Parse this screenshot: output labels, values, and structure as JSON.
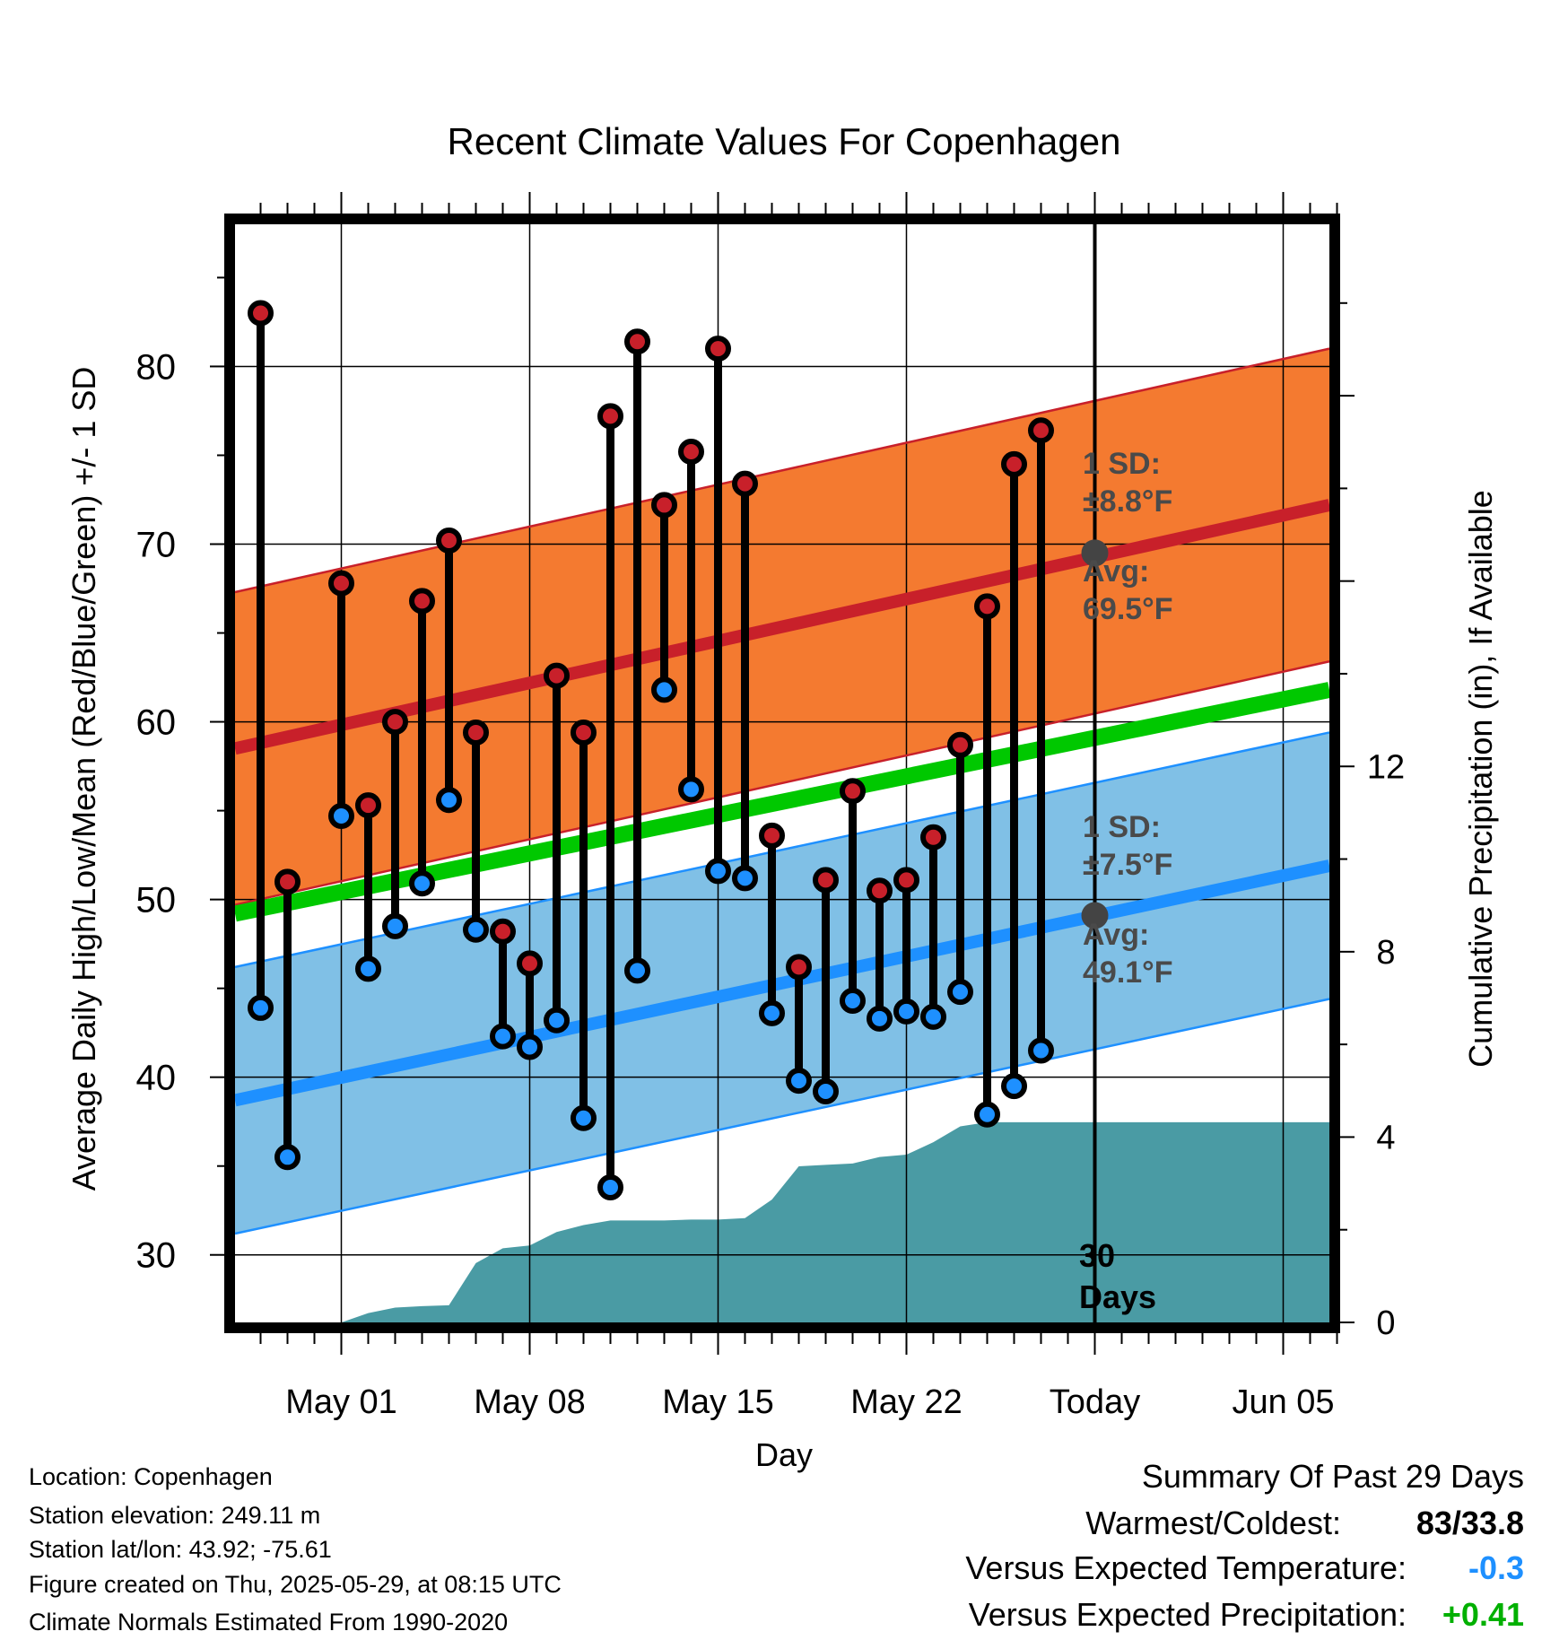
{
  "chart_data": {
    "type": "line",
    "title": "Recent Climate Values For Copenhagen",
    "xlabel": "Day",
    "ylabel": "Average Daily High/Low/Mean (Red/Blue/Green) +/- 1 SD",
    "ylabel_right": "Cumulative Precipitation (in), If Available",
    "x_ticks": [
      "May 01",
      "May 08",
      "May 15",
      "May 22",
      "Today",
      "Jun 05"
    ],
    "y_ticks": [
      30,
      40,
      50,
      60,
      70,
      80
    ],
    "y_ticks_right": [
      0,
      4,
      8,
      12
    ],
    "ylim": [
      26.2,
      88
    ],
    "ylim_right": [
      0,
      23.7
    ],
    "grid": true,
    "today_marker": "30 Days",
    "days": [
      "Apr 28",
      "Apr 29",
      "Apr 30",
      "May 01",
      "May 02",
      "May 03",
      "May 04",
      "May 05",
      "May 06",
      "May 07",
      "May 08",
      "May 09",
      "May 10",
      "May 11",
      "May 12",
      "May 13",
      "May 14",
      "May 15",
      "May 16",
      "May 17",
      "May 18",
      "May 19",
      "May 20",
      "May 21",
      "May 22",
      "May 23",
      "May 24",
      "May 25",
      "May 26",
      "May 27",
      "May 28",
      "May 29",
      "May 30",
      "May 31",
      "Jun 01",
      "Jun 02",
      "Jun 03",
      "Jun 04",
      "Jun 05",
      "Jun 06",
      "Jun 07"
    ],
    "series": [
      {
        "name": "Daily High",
        "color": "#c8202a",
        "values": [
          83.0,
          51.0,
          null,
          67.8,
          55.3,
          60.0,
          66.8,
          70.2,
          59.4,
          48.2,
          46.4,
          62.6,
          59.4,
          77.2,
          81.4,
          72.2,
          75.2,
          81.0,
          73.4,
          53.6,
          46.2,
          51.1,
          56.1,
          50.5,
          51.1,
          53.5,
          58.7,
          66.5,
          74.5,
          76.4
        ]
      },
      {
        "name": "Daily Low",
        "color": "#1e90ff",
        "values": [
          43.9,
          35.5,
          null,
          54.7,
          46.1,
          48.5,
          50.9,
          55.6,
          48.3,
          42.3,
          41.7,
          43.2,
          37.7,
          33.8,
          46.0,
          61.8,
          56.2,
          51.6,
          51.2,
          43.6,
          39.8,
          39.2,
          44.3,
          43.3,
          43.7,
          43.4,
          44.8,
          37.9,
          39.5,
          41.5
        ]
      },
      {
        "name": "Cumulative Precipitation",
        "color": "#4a9ba4",
        "values": [
          0,
          0,
          0,
          0,
          0.2,
          0.32,
          0.35,
          0.37,
          1.28,
          1.6,
          1.66,
          1.95,
          2.1,
          2.2,
          2.2,
          2.2,
          2.22,
          2.22,
          2.25,
          2.65,
          3.37,
          3.4,
          3.43,
          3.57,
          3.62,
          3.89,
          4.23,
          4.32,
          4.32,
          4.32,
          4.32,
          4.32,
          4.32,
          4.32,
          4.32,
          4.32,
          4.32,
          4.32,
          4.32,
          4.32,
          4.32
        ]
      }
    ],
    "normals": {
      "high_avg": [
        58.5,
        72.2
      ],
      "high_sd": 8.8,
      "mean_avg": [
        49.2,
        61.8
      ],
      "low_avg": [
        38.7,
        51.9
      ],
      "low_sd": 7.5
    },
    "annotations": {
      "high_sd_label": [
        "1 SD:",
        "±8.8°F"
      ],
      "high_avg_label": [
        "Avg:",
        "69.5°F"
      ],
      "low_sd_label": [
        "1 SD:",
        "±7.5°F"
      ],
      "low_avg_label": [
        "Avg:",
        "49.1°F"
      ],
      "high_avg_today": 69.5,
      "low_avg_today": 49.1
    },
    "colors": {
      "high_band": "#f47a30",
      "high_line": "#c8202a",
      "mean_line": "#00c800",
      "low_band": "#80c0e6",
      "low_line": "#1e90ff",
      "precip": "#4a9ba4",
      "marker_today": "#444444"
    }
  },
  "info": {
    "location": "Location: Copenhagen",
    "elevation": "Station elevation: 249.11 m",
    "latlon": "Station lat/lon: 43.92; -75.61",
    "created": "Figure created on Thu, 2025-05-29, at 08:15 UTC",
    "normals": "Climate Normals Estimated From 1990-2020"
  },
  "summary": {
    "title": "Summary Of Past 29 Days",
    "warmest_label": "Warmest/Coldest:",
    "warmest_value": "83/33.8",
    "temp_label": "Versus Expected Temperature:",
    "temp_value": "-0.3",
    "temp_color": "#1e90ff",
    "precip_label": "Versus Expected Precipitation:",
    "precip_value": "+0.41",
    "precip_color": "#00b000"
  }
}
